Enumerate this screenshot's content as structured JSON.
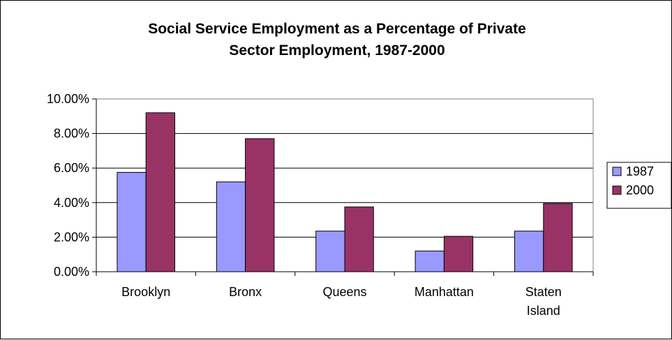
{
  "chart_data": {
    "type": "bar",
    "title_lines": [
      "Social Service Employment as a Percentage of Private",
      "Sector Employment, 1987-2000"
    ],
    "categories": [
      [
        "Brooklyn"
      ],
      [
        "Bronx"
      ],
      [
        "Queens"
      ],
      [
        "Manhattan"
      ],
      [
        "Staten",
        "Island"
      ]
    ],
    "series": [
      {
        "name": "1987",
        "color": "#9999ff",
        "values": [
          0.0575,
          0.052,
          0.0235,
          0.012,
          0.0235
        ]
      },
      {
        "name": "2000",
        "color": "#993366",
        "values": [
          0.092,
          0.077,
          0.0375,
          0.0205,
          0.0395
        ]
      }
    ],
    "ylim": [
      0,
      0.1
    ],
    "y_ticks": [
      {
        "value": 0.0,
        "label": "0.00%"
      },
      {
        "value": 0.02,
        "label": "2.00%"
      },
      {
        "value": 0.04,
        "label": "4.00%"
      },
      {
        "value": 0.06,
        "label": "6.00%"
      },
      {
        "value": 0.08,
        "label": "8.00%"
      },
      {
        "value": 0.1,
        "label": "10.00%"
      }
    ],
    "grid": true,
    "legend_position": "right",
    "xlabel": "",
    "ylabel": ""
  }
}
